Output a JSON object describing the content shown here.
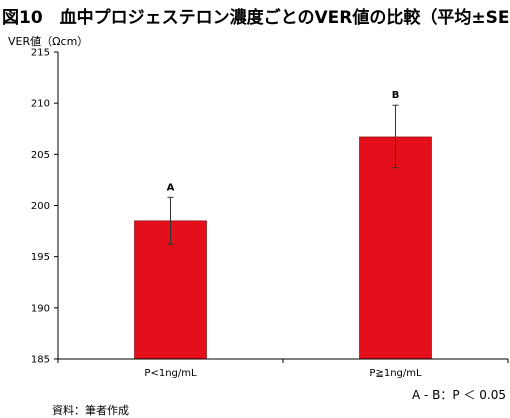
{
  "title": "図10　血中プロジェステロン濃度ごとのVER値の比較（平均±SE)",
  "significance_note": "A - B：P ＜ 0.05",
  "source_note": "資料：筆者作成",
  "colors": {
    "bar_fill": "#e3101c",
    "bar_stroke": "#7a0000",
    "axis": "#000000"
  },
  "chart_data": {
    "type": "bar",
    "title": "図10　血中プロジェステロン濃度ごとのVER値の比較（平均±SE)",
    "xlabel": "",
    "ylabel": "VER値（Ωcm）",
    "ylim": [
      185,
      215
    ],
    "yticks": [
      185,
      190,
      195,
      200,
      205,
      210,
      215
    ],
    "ytick_labels": [
      "185",
      "190",
      "195",
      "200",
      "205",
      "210",
      "215"
    ],
    "categories": [
      "P<1ng/mL",
      "P≧1ng/mL"
    ],
    "values": [
      198.5,
      206.7
    ],
    "error_upper": [
      200.8,
      209.8
    ],
    "error_lower": [
      196.2,
      203.7
    ],
    "data_labels": [
      "A",
      "B"
    ],
    "grid": false,
    "legend": "none"
  }
}
